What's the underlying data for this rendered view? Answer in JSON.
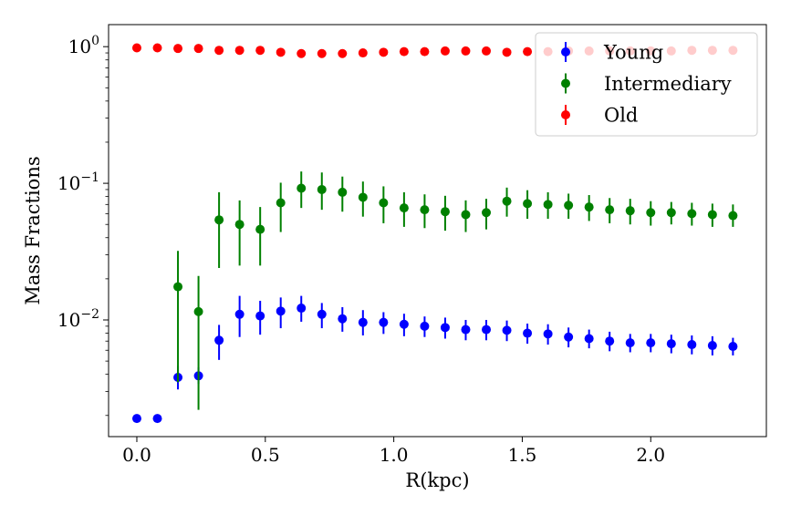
{
  "chart_data": {
    "type": "scatter",
    "title": "",
    "xlabel": "R(kpc)",
    "ylabel": "Mass Fractions",
    "yscale": "log",
    "xlim": [
      -0.11,
      2.45
    ],
    "ylim": [
      0.0014,
      1.45
    ],
    "xticks": [
      0.0,
      0.5,
      1.0,
      1.5,
      2.0
    ],
    "xtick_labels": [
      "0.0",
      "0.5",
      "1.0",
      "1.5",
      "2.0"
    ],
    "yticks": [
      {
        "value": 1,
        "base": "10",
        "exp": "0"
      },
      {
        "value": 0.1,
        "base": "10",
        "exp": "−1"
      },
      {
        "value": 0.01,
        "base": "10",
        "exp": "−2"
      }
    ],
    "legend": {
      "position": "upper-right",
      "entries": [
        "Young",
        "Intermediary",
        "Old"
      ]
    },
    "x": [
      0.0,
      0.08,
      0.16,
      0.24,
      0.32,
      0.4,
      0.48,
      0.56,
      0.64,
      0.72,
      0.8,
      0.88,
      0.96,
      1.04,
      1.12,
      1.2,
      1.28,
      1.36,
      1.44,
      1.52,
      1.6,
      1.68,
      1.76,
      1.84,
      1.92,
      2.0,
      2.08,
      2.16,
      2.24,
      2.32
    ],
    "series": [
      {
        "name": "Young",
        "color": "#0000ff",
        "values": [
          0.0019,
          0.0019,
          0.0038,
          0.0039,
          0.0071,
          0.011,
          0.0107,
          0.0116,
          0.0122,
          0.011,
          0.0102,
          0.0096,
          0.0096,
          0.0093,
          0.009,
          0.0088,
          0.0085,
          0.0085,
          0.0084,
          0.008,
          0.0079,
          0.0075,
          0.0073,
          0.007,
          0.0068,
          0.0068,
          0.0067,
          0.0066,
          0.0065,
          0.0064
        ],
        "lower": [
          null,
          null,
          0.0031,
          0.0034,
          0.0051,
          0.0075,
          0.0078,
          0.0087,
          0.0097,
          0.0087,
          0.0082,
          0.0077,
          0.0079,
          0.0076,
          0.0075,
          0.0073,
          0.0071,
          0.0071,
          0.007,
          0.0067,
          0.0066,
          0.0063,
          0.0062,
          0.0059,
          0.0058,
          0.0058,
          0.0057,
          0.0056,
          0.0055,
          0.0055
        ],
        "upper": [
          null,
          null,
          0.0046,
          0.0045,
          0.0092,
          0.015,
          0.0138,
          0.0146,
          0.015,
          0.0133,
          0.0124,
          0.0118,
          0.0114,
          0.0111,
          0.0106,
          0.0104,
          0.01,
          0.01,
          0.0099,
          0.0094,
          0.0093,
          0.0088,
          0.0085,
          0.0082,
          0.0079,
          0.0079,
          0.0078,
          0.0077,
          0.0076,
          0.0074
        ]
      },
      {
        "name": "Intermediary",
        "color": "#008000",
        "values": [
          null,
          null,
          0.0175,
          0.0115,
          0.054,
          0.05,
          0.046,
          0.072,
          0.092,
          0.09,
          0.086,
          0.079,
          0.072,
          0.066,
          0.064,
          0.062,
          0.059,
          0.061,
          0.074,
          0.071,
          0.07,
          0.069,
          0.067,
          0.064,
          0.063,
          0.061,
          0.061,
          0.06,
          0.059,
          0.058
        ],
        "lower": [
          null,
          null,
          0.0035,
          0.0022,
          0.024,
          0.025,
          0.025,
          0.044,
          0.066,
          0.064,
          0.062,
          0.057,
          0.051,
          0.048,
          0.047,
          0.045,
          0.044,
          0.046,
          0.057,
          0.055,
          0.055,
          0.055,
          0.053,
          0.051,
          0.05,
          0.049,
          0.05,
          0.049,
          0.048,
          0.048
        ],
        "upper": [
          null,
          null,
          0.032,
          0.021,
          0.086,
          0.075,
          0.067,
          0.101,
          0.122,
          0.12,
          0.112,
          0.103,
          0.095,
          0.086,
          0.083,
          0.081,
          0.075,
          0.077,
          0.093,
          0.089,
          0.086,
          0.084,
          0.082,
          0.078,
          0.077,
          0.074,
          0.073,
          0.072,
          0.071,
          0.07
        ]
      },
      {
        "name": "Old",
        "color": "#ff0000",
        "values": [
          0.98,
          0.98,
          0.97,
          0.97,
          0.94,
          0.94,
          0.94,
          0.91,
          0.89,
          0.89,
          0.89,
          0.9,
          0.91,
          0.92,
          0.92,
          0.93,
          0.93,
          0.93,
          0.91,
          0.92,
          0.92,
          0.93,
          0.93,
          0.93,
          0.93,
          0.93,
          0.93,
          0.94,
          0.94,
          0.94
        ],
        "lower": [
          null,
          null,
          null,
          null,
          null,
          null,
          null,
          null,
          null,
          null,
          null,
          null,
          null,
          null,
          null,
          null,
          null,
          null,
          null,
          null,
          null,
          null,
          null,
          null,
          null,
          null,
          null,
          null,
          null,
          null
        ],
        "upper": [
          null,
          null,
          null,
          null,
          null,
          null,
          null,
          null,
          null,
          null,
          null,
          null,
          null,
          null,
          null,
          null,
          null,
          null,
          null,
          null,
          null,
          null,
          null,
          null,
          null,
          null,
          null,
          null,
          null,
          null
        ]
      }
    ]
  }
}
